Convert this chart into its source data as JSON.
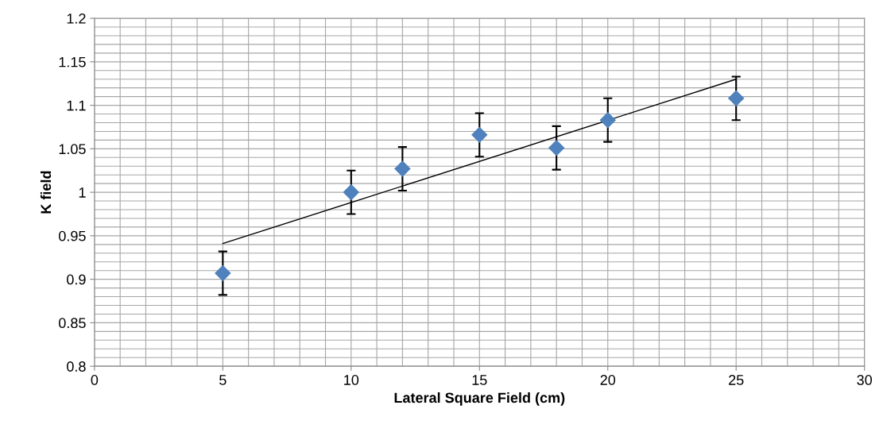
{
  "chart_data": {
    "type": "scatter",
    "xlabel": "Lateral Square Field (cm)",
    "ylabel": "K field",
    "xlim": [
      0,
      30
    ],
    "xticks": [
      0,
      5,
      10,
      15,
      20,
      25,
      30
    ],
    "ylim": [
      0.8,
      1.2
    ],
    "yticks": [
      0.8,
      0.85,
      0.9,
      0.95,
      1,
      1.05,
      1.1,
      1.15,
      1.2
    ],
    "grid": true,
    "marker": "diamond",
    "series": [
      {
        "color": "#4f81bd",
        "x": [
          5,
          10,
          12,
          15,
          18,
          20,
          25
        ],
        "values": [
          0.907,
          1.0,
          1.027,
          1.066,
          1.051,
          1.083,
          1.108
        ],
        "errors": [
          0.025,
          0.025,
          0.025,
          0.025,
          0.025,
          0.025,
          0.025
        ]
      },
      {
        "type": "line",
        "color": "#000000",
        "marker": "none",
        "x": [
          5,
          25
        ],
        "values": [
          0.941,
          1.13
        ]
      }
    ]
  }
}
